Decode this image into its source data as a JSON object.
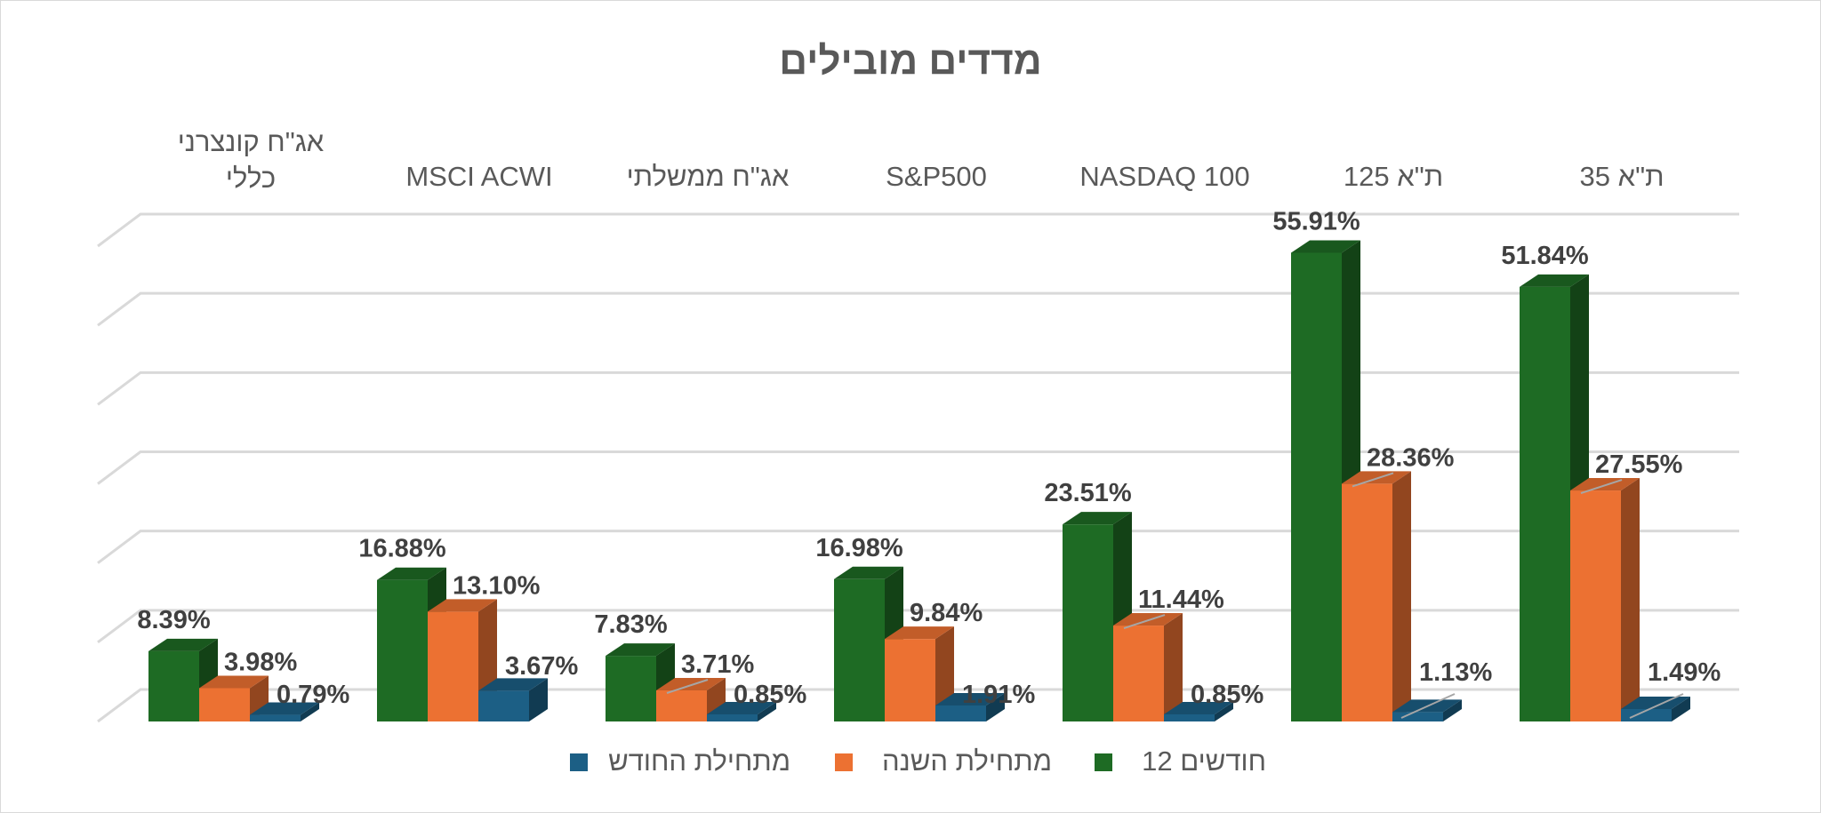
{
  "chart_data": {
    "type": "bar",
    "style": "3d-clustered-column",
    "title": "מדדים מובילים",
    "categories_rtl": [
      {
        "label": "ת\"א 35"
      },
      {
        "label": "ת\"א 125"
      },
      {
        "label": "NASDAQ 100"
      },
      {
        "label": "S&P500"
      },
      {
        "label": "אג\"ח ממשלתי"
      },
      {
        "label": "MSCI ACWI"
      },
      {
        "label": "אג\"ח קונצרני",
        "label2": "כללי"
      }
    ],
    "series": [
      {
        "name": "12 חודשים",
        "color": "#1e6b24",
        "values": [
          51.84,
          55.91,
          23.51,
          16.98,
          7.83,
          16.88,
          8.39
        ],
        "labels": [
          "51.84%",
          "55.91%",
          "23.51%",
          "16.98%",
          "7.83%",
          "16.88%",
          "8.39%"
        ]
      },
      {
        "name": "מתחילת השנה",
        "color": "#ec7132",
        "values": [
          27.55,
          28.36,
          11.44,
          9.84,
          3.71,
          13.1,
          3.98
        ],
        "labels": [
          "27.55%",
          "28.36%",
          "11.44%",
          "9.84%",
          "3.71%",
          "13.10%",
          "3.98%"
        ]
      },
      {
        "name": "מתחילת החודש",
        "color": "#1c5f85",
        "values": [
          1.49,
          1.13,
          0.85,
          1.91,
          0.85,
          3.67,
          0.79
        ],
        "labels": [
          "1.49%",
          "1.13%",
          "0.85%",
          "1.91%",
          "0.85%",
          "3.67%",
          "0.79%"
        ]
      }
    ],
    "ylim": [
      0,
      60
    ],
    "grid": true,
    "axis_labels_shown": false,
    "legend_position": "bottom"
  }
}
